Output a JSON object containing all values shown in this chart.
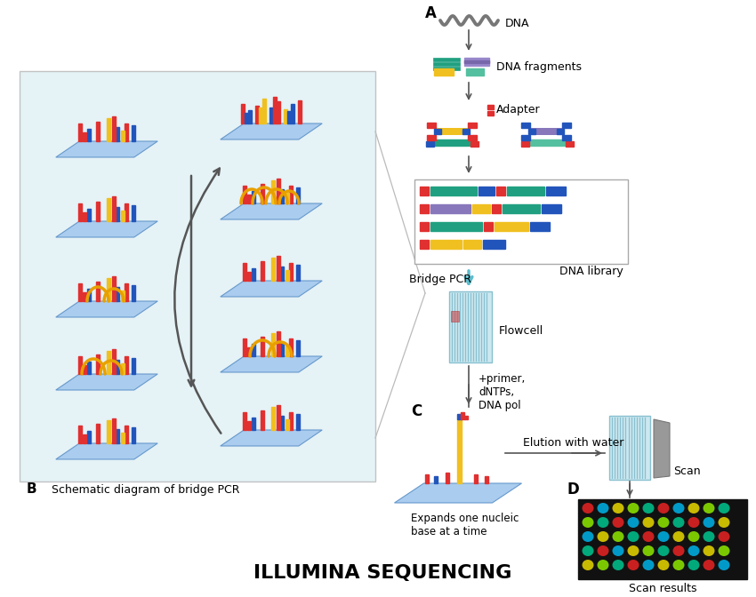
{
  "title": "ILLUMINA SEQUENCING",
  "title_fontsize": 16,
  "title_fontweight": "bold",
  "bg_color": "#ffffff",
  "label_A": "A",
  "label_B": "B",
  "label_C": "C",
  "label_D": "D",
  "text_DNA": "DNA",
  "text_fragments": "DNA fragments",
  "text_adapter": "Adapter",
  "text_library": "DNA library",
  "text_flowcell": "Flowcell",
  "text_bridge_pcr": "Bridge PCR",
  "text_primer": "+primer,\ndNTPs,\nDNA pol",
  "text_elution": "Elution with water",
  "text_scan": "Scan",
  "text_scan_results": "Scan results",
  "text_expands": "Expands one nucleic\nbase at a time",
  "text_schematic": "Schematic diagram of bridge PCR",
  "colors": {
    "red": "#e03030",
    "blue": "#2255bb",
    "yellow": "#f0c020",
    "teal": "#20a080",
    "teal_light": "#55c0a0",
    "purple": "#8866cc",
    "light_blue": "#aed6f1",
    "arrow_teal": "#5bbccc",
    "gray": "#888888",
    "dark_gray": "#555555",
    "light_gray": "#cccccc",
    "plate_blue": "#aaccee",
    "plate_edge": "#6699cc",
    "panel_b_bg": "#d0e8f0"
  }
}
